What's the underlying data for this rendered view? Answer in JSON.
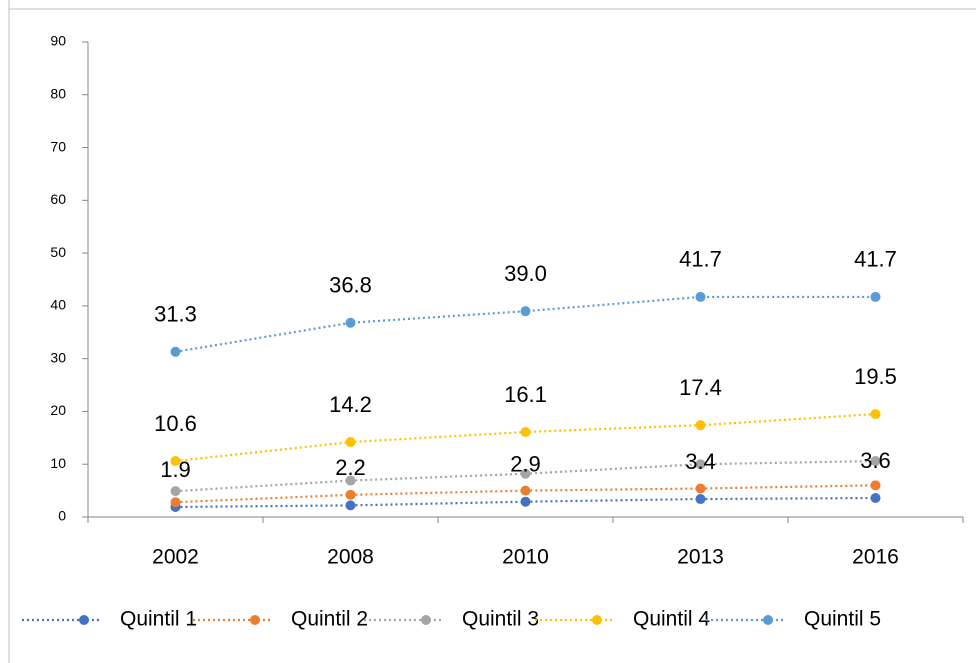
{
  "chart_data": {
    "type": "line",
    "categories": [
      "2002",
      "2008",
      "2010",
      "2013",
      "2016"
    ],
    "series": [
      {
        "name": "Quintil 1",
        "color": "#4472c4",
        "values": [
          1.9,
          2.2,
          2.9,
          3.4,
          3.6
        ],
        "value_labels": [
          "1.9",
          "2.2",
          "2.9",
          "3.4",
          "3.6"
        ]
      },
      {
        "name": "Quintil 2",
        "color": "#ed7d31",
        "values": [
          2.8,
          4.2,
          5.0,
          5.4,
          6.0
        ]
      },
      {
        "name": "Quintil 3",
        "color": "#a5a5a5",
        "values": [
          4.9,
          6.9,
          8.2,
          10.0,
          10.6
        ]
      },
      {
        "name": "Quintil 4",
        "color": "#ffc000",
        "values": [
          10.6,
          14.2,
          16.1,
          17.4,
          19.5
        ],
        "value_labels": [
          "10.6",
          "14.2",
          "16.1",
          "17.4",
          "19.5"
        ]
      },
      {
        "name": "Quintil 5",
        "color": "#5b9bd5",
        "values": [
          31.3,
          36.8,
          39.0,
          41.7,
          41.7
        ],
        "value_labels": [
          "31.3",
          "36.8",
          "39.0",
          "41.7",
          "41.7"
        ]
      }
    ],
    "ylim": [
      0,
      90
    ],
    "yticks": [
      0,
      10,
      20,
      30,
      40,
      50,
      60,
      70,
      80,
      90
    ],
    "legend": "bottom",
    "line_style": "dotted"
  }
}
